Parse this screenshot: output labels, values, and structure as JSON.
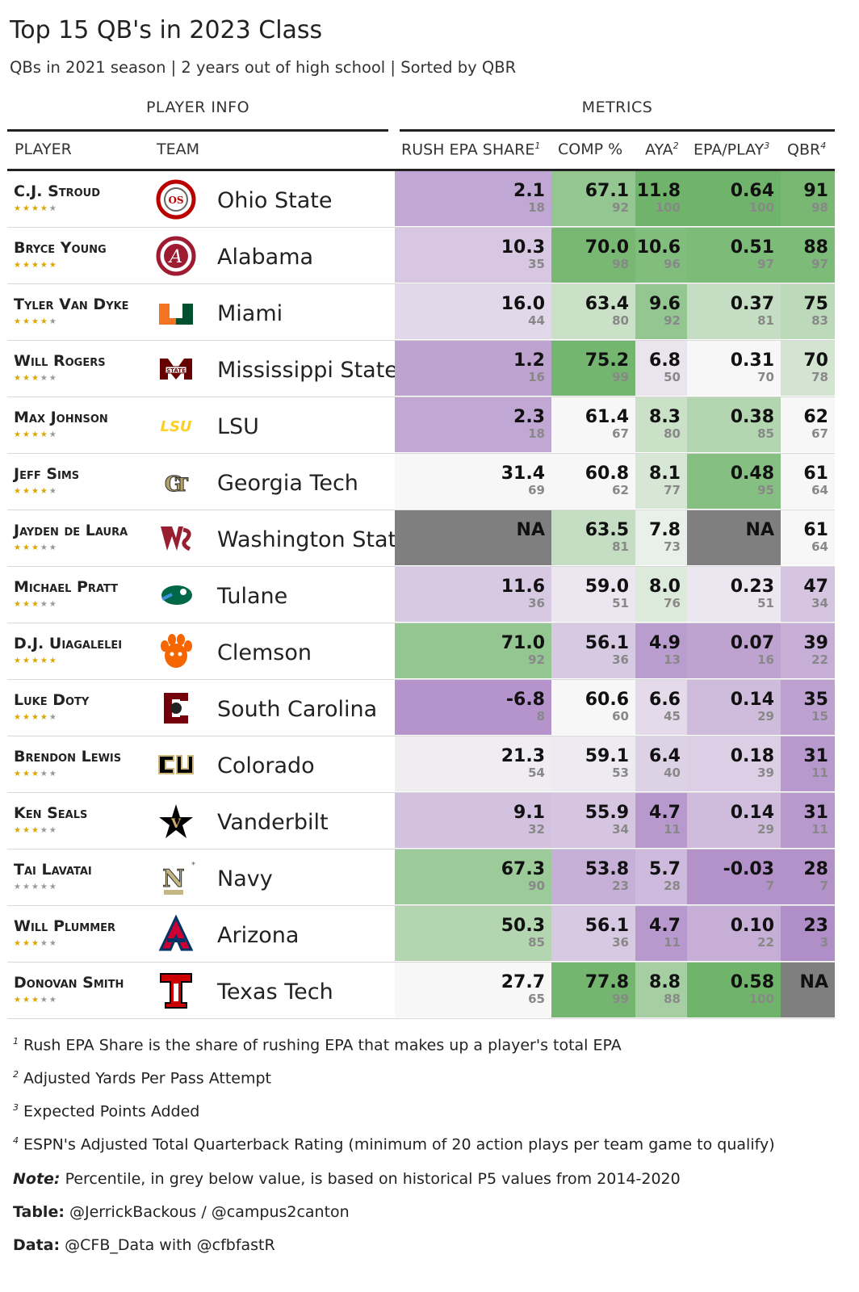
{
  "title": "Top 15 QB's in 2023 Class",
  "subtitle": "QBs in 2021 season | 2 years out of high school | Sorted by QBR",
  "spanners": {
    "player_info": "PLAYER INFO",
    "metrics": "METRICS"
  },
  "columns": {
    "player": "PLAYER",
    "team": "TEAM",
    "rush": "RUSH EPA SHARE",
    "rush_sup": "1",
    "comp": "COMP %",
    "aya": "AYA",
    "aya_sup": "2",
    "epa": "EPA/PLAY",
    "epa_sup": "3",
    "qbr": "QBR",
    "qbr_sup": "4"
  },
  "colors": {
    "purple_strong": "#b08ec8",
    "green_strong": "#6fb46a",
    "na": "#7f7f7f",
    "neutral": "#f7f7f7"
  },
  "chart_data": {
    "type": "table",
    "rows": [
      {
        "player": "C.J. Stroud",
        "stars": 4,
        "team": "Ohio State",
        "logo": "ohio-state-logo",
        "rush": "2.1",
        "rush_pct": 18,
        "comp": "67.1",
        "comp_pct": 92,
        "aya": "11.8",
        "aya_pct": 100,
        "epa": "0.64",
        "epa_pct": 100,
        "qbr": "91",
        "qbr_pct": 98
      },
      {
        "player": "Bryce Young",
        "stars": 5,
        "team": "Alabama",
        "logo": "alabama-logo",
        "rush": "10.3",
        "rush_pct": 35,
        "comp": "70.0",
        "comp_pct": 98,
        "aya": "10.6",
        "aya_pct": 96,
        "epa": "0.51",
        "epa_pct": 97,
        "qbr": "88",
        "qbr_pct": 97
      },
      {
        "player": "Tyler Van Dyke",
        "stars": 4,
        "team": "Miami",
        "logo": "miami-logo",
        "rush": "16.0",
        "rush_pct": 44,
        "comp": "63.4",
        "comp_pct": 80,
        "aya": "9.6",
        "aya_pct": 92,
        "epa": "0.37",
        "epa_pct": 81,
        "qbr": "75",
        "qbr_pct": 83
      },
      {
        "player": "Will Rogers",
        "stars": 3,
        "team": "Mississippi State",
        "logo": "mississippi-state-logo",
        "rush": "1.2",
        "rush_pct": 16,
        "comp": "75.2",
        "comp_pct": 99,
        "aya": "6.8",
        "aya_pct": 50,
        "epa": "0.31",
        "epa_pct": 70,
        "qbr": "70",
        "qbr_pct": 78
      },
      {
        "player": "Max Johnson",
        "stars": 4,
        "team": "LSU",
        "logo": "lsu-logo",
        "rush": "2.3",
        "rush_pct": 18,
        "comp": "61.4",
        "comp_pct": 67,
        "aya": "8.3",
        "aya_pct": 80,
        "epa": "0.38",
        "epa_pct": 85,
        "qbr": "62",
        "qbr_pct": 67
      },
      {
        "player": "Jeff Sims",
        "stars": 4,
        "team": "Georgia Tech",
        "logo": "georgia-tech-logo",
        "rush": "31.4",
        "rush_pct": 69,
        "comp": "60.8",
        "comp_pct": 62,
        "aya": "8.1",
        "aya_pct": 77,
        "epa": "0.48",
        "epa_pct": 95,
        "qbr": "61",
        "qbr_pct": 64
      },
      {
        "player": "Jayden de Laura",
        "stars": 3,
        "team": "Washington State",
        "logo": "washington-state-logo",
        "rush": "NA",
        "rush_pct": null,
        "comp": "63.5",
        "comp_pct": 81,
        "aya": "7.8",
        "aya_pct": 73,
        "epa": "NA",
        "epa_pct": null,
        "qbr": "61",
        "qbr_pct": 64
      },
      {
        "player": "Michael Pratt",
        "stars": 3,
        "team": "Tulane",
        "logo": "tulane-logo",
        "rush": "11.6",
        "rush_pct": 36,
        "comp": "59.0",
        "comp_pct": 51,
        "aya": "8.0",
        "aya_pct": 76,
        "epa": "0.23",
        "epa_pct": 51,
        "qbr": "47",
        "qbr_pct": 34
      },
      {
        "player": "D.J. Uiagalelei",
        "stars": 5,
        "team": "Clemson",
        "logo": "clemson-logo",
        "rush": "71.0",
        "rush_pct": 92,
        "comp": "56.1",
        "comp_pct": 36,
        "aya": "4.9",
        "aya_pct": 13,
        "epa": "0.07",
        "epa_pct": 16,
        "qbr": "39",
        "qbr_pct": 22
      },
      {
        "player": "Luke Doty",
        "stars": 4,
        "team": "South Carolina",
        "logo": "south-carolina-logo",
        "rush": "-6.8",
        "rush_pct": 8,
        "comp": "60.6",
        "comp_pct": 60,
        "aya": "6.6",
        "aya_pct": 45,
        "epa": "0.14",
        "epa_pct": 29,
        "qbr": "35",
        "qbr_pct": 15
      },
      {
        "player": "Brendon Lewis",
        "stars": 3,
        "team": "Colorado",
        "logo": "colorado-logo",
        "rush": "21.3",
        "rush_pct": 54,
        "comp": "59.1",
        "comp_pct": 53,
        "aya": "6.4",
        "aya_pct": 40,
        "epa": "0.18",
        "epa_pct": 39,
        "qbr": "31",
        "qbr_pct": 11
      },
      {
        "player": "Ken Seals",
        "stars": 3,
        "team": "Vanderbilt",
        "logo": "vanderbilt-logo",
        "rush": "9.1",
        "rush_pct": 32,
        "comp": "55.9",
        "comp_pct": 34,
        "aya": "4.7",
        "aya_pct": 11,
        "epa": "0.14",
        "epa_pct": 29,
        "qbr": "31",
        "qbr_pct": 11
      },
      {
        "player": "Tai Lavatai",
        "stars": 0,
        "team": "Navy",
        "logo": "navy-logo",
        "rush": "67.3",
        "rush_pct": 90,
        "comp": "53.8",
        "comp_pct": 23,
        "aya": "5.7",
        "aya_pct": 28,
        "epa": "-0.03",
        "epa_pct": 7,
        "qbr": "28",
        "qbr_pct": 7
      },
      {
        "player": "Will Plummer",
        "stars": 3,
        "team": "Arizona",
        "logo": "arizona-logo",
        "rush": "50.3",
        "rush_pct": 85,
        "comp": "56.1",
        "comp_pct": 36,
        "aya": "4.7",
        "aya_pct": 11,
        "epa": "0.10",
        "epa_pct": 22,
        "qbr": "23",
        "qbr_pct": 3
      },
      {
        "player": "Donovan Smith",
        "stars": 3,
        "team": "Texas Tech",
        "logo": "texas-tech-logo",
        "rush": "27.7",
        "rush_pct": 65,
        "comp": "77.8",
        "comp_pct": 99,
        "aya": "8.8",
        "aya_pct": 88,
        "epa": "0.58",
        "epa_pct": 100,
        "qbr": "NA",
        "qbr_pct": null
      }
    ]
  },
  "footnotes": [
    {
      "n": "1",
      "text": "Rush EPA Share is the share of rushing EPA that makes up a player's total EPA"
    },
    {
      "n": "2",
      "text": "Adjusted Yards Per Pass Attempt"
    },
    {
      "n": "3",
      "text": "Expected Points Added"
    },
    {
      "n": "4",
      "text": "ESPN's Adjusted Total Quarterback Rating (minimum of 20 action plays per team game to qualify)"
    }
  ],
  "source_notes": [
    {
      "label": "Note:",
      "text": "Percentile, in grey below value, is based on historical P5 values from 2014-2020"
    },
    {
      "label": "Table:",
      "text": "@JerrickBackous / @campus2canton"
    },
    {
      "label": "Data:",
      "text": "@CFB_Data with @cfbfastR"
    }
  ]
}
